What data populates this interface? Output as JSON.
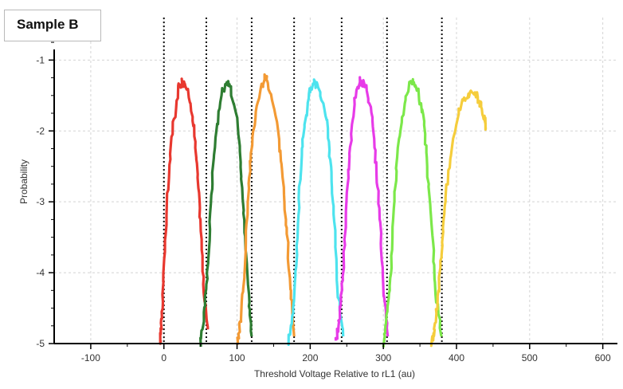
{
  "sample_label": "Sample B",
  "chart_data": {
    "type": "line",
    "title": "",
    "xlabel": "Threshold Voltage Relative to rL1 (au)",
    "ylabel": "Probability",
    "xlim": [
      -150,
      620
    ],
    "ylim": [
      -5,
      -0.4
    ],
    "x_ticks": [
      -100,
      0,
      100,
      200,
      300,
      400,
      500,
      600
    ],
    "y_ticks": [
      -1,
      -2,
      -3,
      -4,
      -5
    ],
    "grid": true,
    "reference_lines_x": [
      0,
      58,
      120,
      178,
      243,
      305,
      380
    ],
    "series": [
      {
        "color": "#e8382f",
        "x": [
          -5,
          -3,
          0,
          5,
          10,
          20,
          25,
          30,
          40,
          45,
          50,
          55,
          60
        ],
        "y": [
          -5,
          -4.6,
          -4.0,
          -2.9,
          -2.1,
          -1.4,
          -1.3,
          -1.35,
          -1.8,
          -2.5,
          -3.3,
          -4.3,
          -4.8
        ]
      },
      {
        "color": "#2e7d32",
        "x": [
          50,
          55,
          60,
          65,
          70,
          80,
          85,
          90,
          100,
          105,
          110,
          115,
          120
        ],
        "y": [
          -5,
          -4.6,
          -3.9,
          -2.9,
          -2.1,
          -1.45,
          -1.32,
          -1.35,
          -1.8,
          -2.5,
          -3.3,
          -4.2,
          -4.9
        ]
      },
      {
        "color": "#f39a34",
        "x": [
          100,
          105,
          110,
          115,
          120,
          130,
          138,
          142,
          155,
          162,
          168,
          173,
          178
        ],
        "y": [
          -5,
          -4.7,
          -4.0,
          -2.9,
          -2.2,
          -1.5,
          -1.25,
          -1.3,
          -1.9,
          -2.6,
          -3.4,
          -4.3,
          -4.9
        ]
      },
      {
        "color": "#4de3ee",
        "x": [
          170,
          175,
          180,
          185,
          190,
          198,
          205,
          210,
          222,
          228,
          233,
          238,
          245
        ],
        "y": [
          -5,
          -4.7,
          -4.0,
          -2.9,
          -2.1,
          -1.5,
          -1.32,
          -1.35,
          -1.8,
          -2.5,
          -3.3,
          -4.3,
          -4.9
        ]
      },
      {
        "color": "#e73be8",
        "x": [
          235,
          240,
          245,
          250,
          255,
          262,
          268,
          275,
          285,
          290,
          296,
          300,
          306
        ],
        "y": [
          -5,
          -4.6,
          -4.0,
          -3.0,
          -2.2,
          -1.5,
          -1.3,
          -1.35,
          -1.8,
          -2.5,
          -3.3,
          -4.3,
          -4.9
        ]
      },
      {
        "color": "#7ce84a",
        "x": [
          300,
          305,
          310,
          315,
          320,
          330,
          338,
          345,
          355,
          360,
          366,
          372,
          380
        ],
        "y": [
          -5,
          -4.6,
          -4.0,
          -3.0,
          -2.2,
          -1.55,
          -1.3,
          -1.35,
          -1.8,
          -2.5,
          -3.3,
          -4.3,
          -4.9
        ]
      },
      {
        "color": "#f5cd3c",
        "x": [
          365,
          370,
          375,
          380,
          385,
          395,
          405,
          415,
          425,
          432,
          438,
          440
        ],
        "y": [
          -5,
          -4.8,
          -4.3,
          -3.6,
          -2.9,
          -2.1,
          -1.65,
          -1.5,
          -1.45,
          -1.6,
          -1.8,
          -1.95
        ]
      }
    ]
  }
}
